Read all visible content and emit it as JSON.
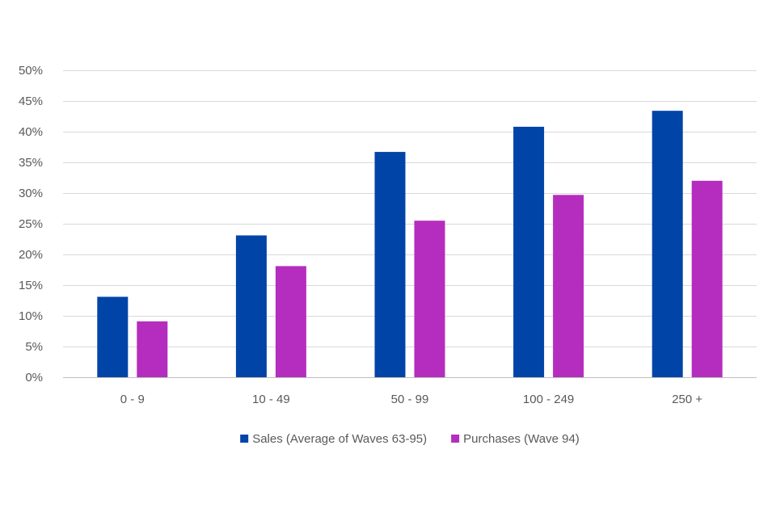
{
  "chart_data": {
    "type": "bar",
    "title": "",
    "xlabel": "",
    "ylabel": "",
    "categories": [
      "0 - 9",
      "10 - 49",
      "50 - 99",
      "100 - 249",
      "250 +"
    ],
    "series": [
      {
        "name": "Sales (Average of Waves 63-95)",
        "color": "#0044A8",
        "values": [
          0.131,
          0.231,
          0.367,
          0.408,
          0.434
        ]
      },
      {
        "name": "Purchases (Wave 94)",
        "color": "#B52DBE",
        "values": [
          0.091,
          0.181,
          0.255,
          0.297,
          0.32
        ]
      }
    ],
    "ylim": [
      0,
      0.5
    ],
    "yticks": [
      {
        "value": 0,
        "label": "0%"
      },
      {
        "value": 0.05,
        "label": "5%"
      },
      {
        "value": 0.1,
        "label": "10%"
      },
      {
        "value": 0.15,
        "label": "15%"
      },
      {
        "value": 0.2,
        "label": "20%"
      },
      {
        "value": 0.25,
        "label": "25%"
      },
      {
        "value": 0.3,
        "label": "30%"
      },
      {
        "value": 0.35,
        "label": "35%"
      },
      {
        "value": 0.4,
        "label": "40%"
      },
      {
        "value": 0.45,
        "label": "45%"
      },
      {
        "value": 0.5,
        "label": "50%"
      }
    ],
    "grid": true,
    "legend_position": "bottom-center"
  }
}
